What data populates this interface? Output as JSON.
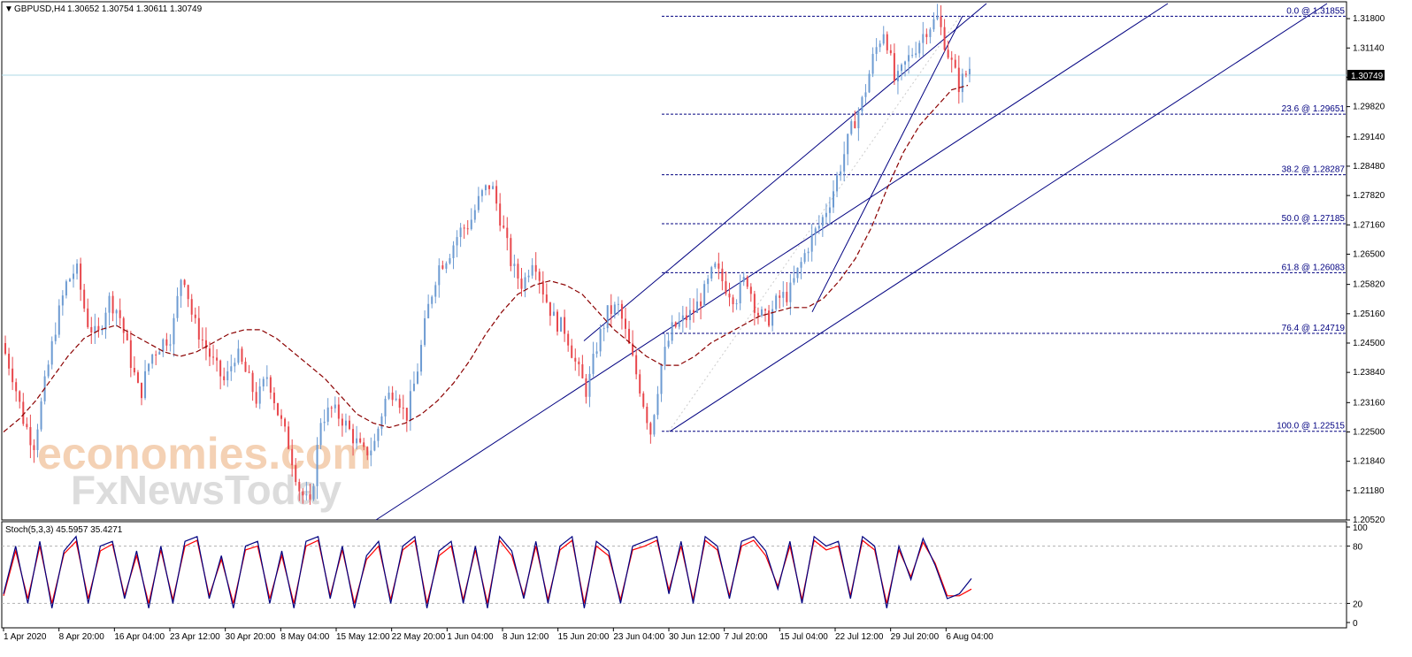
{
  "header": {
    "symbol_timeframe": "GBPUSD,H4",
    "ohlc": "1.30652 1.30754 1.30611 1.30749",
    "indicator_label": "Stoch(5,3,3) 45.5957 35.4271"
  },
  "watermark": {
    "line1": "economies.com",
    "line2": "FxNewsToday"
  },
  "colors": {
    "bull_candle": "#6d9bd2",
    "bear_candle": "#e8474c",
    "moving_average": "#8b0000",
    "channel_lines": "#000080",
    "fib_levels": "#000080",
    "stoch_main": "#000080",
    "stoch_signal": "#ff0000",
    "current_price_line": "#add8e6"
  },
  "chart_data": [
    {
      "type": "candlestick",
      "symbol": "GBPUSD",
      "timeframe": "H4",
      "ylim": [
        1.2052,
        1.3214
      ],
      "price_ticks": [
        "1.31800",
        "1.31140",
        "1.30480",
        "1.29820",
        "1.29140",
        "1.28480",
        "1.27820",
        "1.27160",
        "1.26500",
        "1.25820",
        "1.25160",
        "1.24500",
        "1.23840",
        "1.23160",
        "1.22500",
        "1.21840",
        "1.21180",
        "1.20520"
      ],
      "time_labels": [
        "1 Apr 2020",
        "8 Apr 20:00",
        "16 Apr 04:00",
        "23 Apr 12:00",
        "30 Apr 20:00",
        "8 May 04:00",
        "15 May 12:00",
        "22 May 20:00",
        "1 Jun 04:00",
        "8 Jun 12:00",
        "15 Jun 20:00",
        "23 Jun 04:00",
        "30 Jun 12:00",
        "7 Jul 20:00",
        "15 Jul 04:00",
        "22 Jul 12:00",
        "29 Jul 20:00",
        "6 Aug 04:00"
      ],
      "current_price": "1.30749",
      "price_path": [
        1.245,
        1.238,
        1.228,
        1.222,
        1.235,
        1.248,
        1.258,
        1.262,
        1.25,
        1.246,
        1.255,
        1.252,
        1.242,
        1.233,
        1.242,
        1.245,
        1.247,
        1.262,
        1.25,
        1.245,
        1.24,
        1.236,
        1.243,
        1.238,
        1.232,
        1.238,
        1.229,
        1.222,
        1.212,
        1.208,
        1.228,
        1.23,
        1.228,
        1.224,
        1.22,
        1.222,
        1.232,
        1.235,
        1.228,
        1.238,
        1.252,
        1.262,
        1.265,
        1.27,
        1.272,
        1.278,
        1.281,
        1.272,
        1.262,
        1.258,
        1.265,
        1.256,
        1.25,
        1.248,
        1.24,
        1.234,
        1.245,
        1.252,
        1.253,
        1.244,
        1.235,
        1.225,
        1.24,
        1.248,
        1.25,
        1.252,
        1.256,
        1.262,
        1.258,
        1.255,
        1.26,
        1.252,
        1.25,
        1.255,
        1.256,
        1.262,
        1.268,
        1.272,
        1.278,
        1.286,
        1.294,
        1.3,
        1.31,
        1.316,
        1.303,
        1.308,
        1.312,
        1.316,
        1.318,
        1.31,
        1.303,
        1.307
      ],
      "moving_average": [
        1.225,
        1.228,
        1.232,
        1.237,
        1.242,
        1.246,
        1.248,
        1.249,
        1.247,
        1.245,
        1.243,
        1.242,
        1.243,
        1.245,
        1.247,
        1.248,
        1.248,
        1.246,
        1.243,
        1.24,
        1.237,
        1.233,
        1.229,
        1.227,
        1.226,
        1.227,
        1.229,
        1.232,
        1.236,
        1.241,
        1.247,
        1.252,
        1.256,
        1.258,
        1.259,
        1.258,
        1.256,
        1.252,
        1.248,
        1.245,
        1.242,
        1.24,
        1.24,
        1.242,
        1.245,
        1.247,
        1.249,
        1.251,
        1.252,
        1.253,
        1.253,
        1.255,
        1.259,
        1.264,
        1.271,
        1.28,
        1.288,
        1.294,
        1.298,
        1.302,
        1.303
      ],
      "fibonacci": {
        "anchor_low": 1.22515,
        "anchor_high": 1.31855,
        "levels": [
          {
            "label": "0.0 @ 1.31855",
            "price": 1.31855
          },
          {
            "label": "23.6 @ 1.29651",
            "price": 1.29651
          },
          {
            "label": "38.2 @ 1.28287",
            "price": 1.28287
          },
          {
            "label": "50.0 @ 1.27185",
            "price": 1.27185
          },
          {
            "label": "61.8 @ 1.26083",
            "price": 1.26083
          },
          {
            "label": "76.4 @ 1.24719",
            "price": 1.24719
          },
          {
            "label": "100.0 @ 1.22515",
            "price": 1.22515
          }
        ]
      }
    },
    {
      "type": "line",
      "indicator": "Stochastic Oscillator",
      "ylim": [
        0,
        100
      ],
      "ticks": [
        "100",
        "80",
        "20",
        "0"
      ],
      "levels": [
        20,
        80
      ],
      "series": [
        {
          "values": [
            30,
            80,
            20,
            85,
            15,
            75,
            90,
            20,
            80,
            85,
            25,
            75,
            15,
            80,
            20,
            85,
            90,
            25,
            70,
            15,
            80,
            85,
            20,
            75,
            15,
            85,
            90,
            25,
            80,
            15,
            70,
            85,
            20,
            80,
            90,
            15,
            75,
            85,
            20,
            80,
            15,
            90,
            75,
            25,
            85,
            20,
            80,
            90,
            15,
            85,
            75,
            20,
            80,
            85,
            90,
            30,
            85,
            20,
            90,
            80,
            25,
            85,
            90,
            75,
            35,
            85,
            20,
            90,
            80,
            85,
            25,
            90,
            80,
            15,
            80,
            45,
            88,
            60,
            25,
            30,
            46
          ]
        },
        {
          "values": [
            28,
            75,
            25,
            80,
            20,
            72,
            85,
            25,
            75,
            82,
            28,
            70,
            20,
            76,
            24,
            80,
            86,
            28,
            66,
            20,
            76,
            80,
            25,
            70,
            20,
            80,
            86,
            28,
            76,
            20,
            66,
            80,
            24,
            76,
            86,
            20,
            70,
            80,
            24,
            76,
            20,
            86,
            70,
            28,
            80,
            24,
            76,
            86,
            20,
            80,
            70,
            24,
            76,
            80,
            86,
            34,
            80,
            24,
            86,
            76,
            28,
            80,
            86,
            70,
            38,
            80,
            24,
            86,
            76,
            80,
            28,
            86,
            76,
            20,
            76,
            48,
            84,
            62,
            28,
            28,
            35
          ]
        }
      ]
    }
  ]
}
